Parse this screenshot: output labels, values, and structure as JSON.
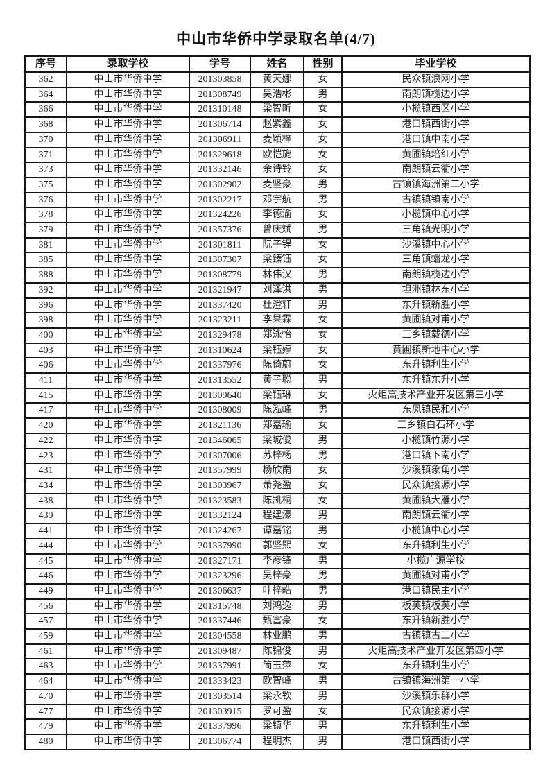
{
  "page": {
    "title": "中山市华侨中学录取名单(4/7)"
  },
  "table": {
    "headers": [
      "序号",
      "录取学校",
      "学号",
      "姓名",
      "性别",
      "毕业学校"
    ],
    "rows": [
      [
        "362",
        "中山市华侨中学",
        "201303858",
        "黄天娜",
        "女",
        "民众镇浪网小学"
      ],
      [
        "364",
        "中山市华侨中学",
        "201308749",
        "吴浩彬",
        "男",
        "南朗镇榄边小学"
      ],
      [
        "366",
        "中山市华侨中学",
        "201310148",
        "梁智昕",
        "女",
        "小榄镇西区小学"
      ],
      [
        "368",
        "中山市华侨中学",
        "201306714",
        "赵紫鑫",
        "女",
        "港口镇西街小学"
      ],
      [
        "370",
        "中山市华侨中学",
        "201306911",
        "麦颖梓",
        "女",
        "港口镇中南小学"
      ],
      [
        "371",
        "中山市华侨中学",
        "201329618",
        "欧恺旎",
        "女",
        "黄圃镇培红小学"
      ],
      [
        "373",
        "中山市华侨中学",
        "201332146",
        "余诗铃",
        "女",
        "南朗镇云衢小学"
      ],
      [
        "375",
        "中山市华侨中学",
        "201302902",
        "麦坚豪",
        "男",
        "古镇镇海洲第二小学"
      ],
      [
        "376",
        "中山市华侨中学",
        "201302217",
        "邓宇航",
        "男",
        "古镇镇镇南小学"
      ],
      [
        "378",
        "中山市华侨中学",
        "201324226",
        "李德渝",
        "女",
        "小榄镇中心小学"
      ],
      [
        "379",
        "中山市华侨中学",
        "201357376",
        "曾庆斌",
        "男",
        "三角镇光明小学"
      ],
      [
        "381",
        "中山市华侨中学",
        "201301811",
        "阮子锃",
        "女",
        "沙溪镇中心小学"
      ],
      [
        "385",
        "中山市华侨中学",
        "201307307",
        "梁臻钰",
        "女",
        "三角镇蟠龙小学"
      ],
      [
        "388",
        "中山市华侨中学",
        "201308779",
        "林伟汉",
        "男",
        "南朗镇榄边小学"
      ],
      [
        "392",
        "中山市华侨中学",
        "201321947",
        "刘泽洪",
        "男",
        "坦洲镇林东小学"
      ],
      [
        "396",
        "中山市华侨中学",
        "201337420",
        "杜澄轩",
        "男",
        "东升镇新胜小学"
      ],
      [
        "398",
        "中山市华侨中学",
        "201323211",
        "李果霖",
        "女",
        "黄圃镇对甫小学"
      ],
      [
        "400",
        "中山市华侨中学",
        "201329478",
        "郑泳怡",
        "女",
        "三乡镇载德小学"
      ],
      [
        "403",
        "中山市华侨中学",
        "201310624",
        "梁钰婷",
        "女",
        "黄圃镇新地中心小学"
      ],
      [
        "406",
        "中山市华侨中学",
        "201337976",
        "陈倚蔚",
        "女",
        "东升镇利生小学"
      ],
      [
        "411",
        "中山市华侨中学",
        "201313552",
        "黄子聪",
        "男",
        "东升镇东升小学"
      ],
      [
        "415",
        "中山市华侨中学",
        "201309640",
        "梁钰琳",
        "女",
        "火炬高技术产业开发区第三小学"
      ],
      [
        "417",
        "中山市华侨中学",
        "201308009",
        "陈泓峰",
        "男",
        "东凤镇民和小学"
      ],
      [
        "420",
        "中山市华侨中学",
        "201321136",
        "郑嘉瑜",
        "女",
        "三乡镇白石环小学"
      ],
      [
        "422",
        "中山市华侨中学",
        "201346065",
        "梁城俊",
        "男",
        "小榄镇竹源小学"
      ],
      [
        "423",
        "中山市华侨中学",
        "201307006",
        "苏梓杨",
        "男",
        "港口镇下南小学"
      ],
      [
        "431",
        "中山市华侨中学",
        "201357999",
        "杨欣南",
        "女",
        "沙溪镇象角小学"
      ],
      [
        "434",
        "中山市华侨中学",
        "201303967",
        "萧尧盈",
        "女",
        "民众镇接源小学"
      ],
      [
        "438",
        "中山市华侨中学",
        "201323583",
        "陈凯桐",
        "女",
        "黄圃镇大雁小学"
      ],
      [
        "439",
        "中山市华侨中学",
        "201332124",
        "程建濠",
        "男",
        "南朗镇云衢小学"
      ],
      [
        "441",
        "中山市华侨中学",
        "201324267",
        "谭嘉铭",
        "男",
        "小榄镇中心小学"
      ],
      [
        "444",
        "中山市华侨中学",
        "201337990",
        "郭坚熙",
        "女",
        "东升镇利生小学"
      ],
      [
        "445",
        "中山市华侨中学",
        "201327171",
        "李彦锋",
        "男",
        "小榄广源学校"
      ],
      [
        "446",
        "中山市华侨中学",
        "201323296",
        "吴梓豪",
        "男",
        "黄圃镇对甫小学"
      ],
      [
        "449",
        "中山市华侨中学",
        "201306637",
        "叶梓皓",
        "男",
        "港口镇民主小学"
      ],
      [
        "456",
        "中山市华侨中学",
        "201315748",
        "刘鸿逸",
        "男",
        "板芙镇板芙小学"
      ],
      [
        "457",
        "中山市华侨中学",
        "201337446",
        "甄富豪",
        "女",
        "东升镇新胜小学"
      ],
      [
        "459",
        "中山市华侨中学",
        "201304558",
        "林业鹏",
        "男",
        "古镇镇古二小学"
      ],
      [
        "461",
        "中山市华侨中学",
        "201309487",
        "陈锦俊",
        "男",
        "火炬高技术产业开发区第四小学"
      ],
      [
        "463",
        "中山市华侨中学",
        "201337991",
        "简玉萍",
        "女",
        "东升镇利生小学"
      ],
      [
        "464",
        "中山市华侨中学",
        "201333423",
        "欧智峰",
        "男",
        "古镇镇海洲第一小学"
      ],
      [
        "470",
        "中山市华侨中学",
        "201303514",
        "梁永钦",
        "男",
        "沙溪镇乐群小学"
      ],
      [
        "477",
        "中山市华侨中学",
        "201303915",
        "罗可盈",
        "女",
        "民众镇接源小学"
      ],
      [
        "479",
        "中山市华侨中学",
        "201337996",
        "梁镇华",
        "男",
        "东升镇利生小学"
      ],
      [
        "480",
        "中山市华侨中学",
        "201306774",
        "程明杰",
        "男",
        "港口镇西街小学"
      ]
    ],
    "cell_names": [
      "serial-cell",
      "admit-school-cell",
      "student-id-cell",
      "name-cell",
      "gender-cell",
      "grad-school-cell"
    ]
  }
}
